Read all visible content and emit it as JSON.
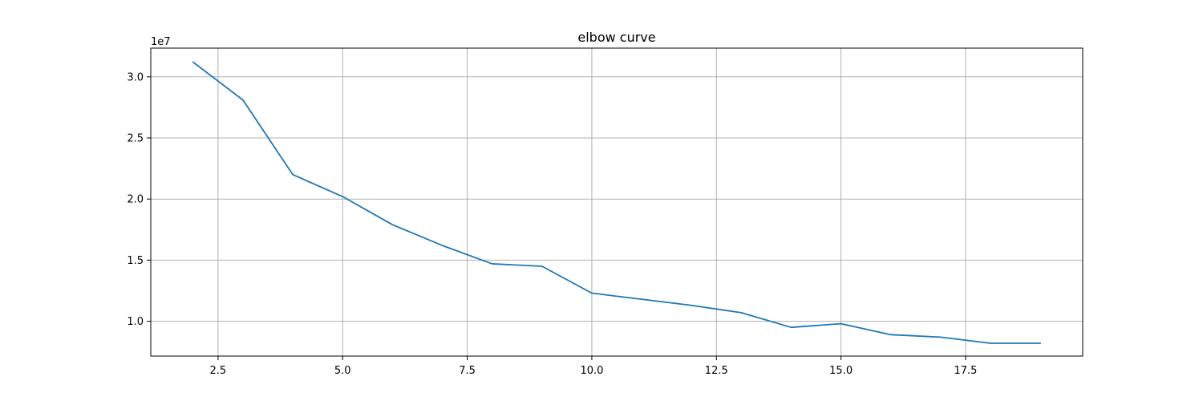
{
  "chart_data": {
    "type": "line",
    "title": "elbow curve",
    "xlabel": "",
    "ylabel": "",
    "y_offset_label": "1e7",
    "xlim": [
      1.15,
      19.85
    ],
    "ylim": [
      0.715,
      3.235
    ],
    "grid": true,
    "colors": {
      "line": "#1f77b4",
      "grid": "#b0b0b0",
      "axes": "#000000"
    },
    "x_ticks": [
      2.5,
      5.0,
      7.5,
      10.0,
      12.5,
      15.0,
      17.5
    ],
    "x_tick_labels": [
      "2.5",
      "5.0",
      "7.5",
      "10.0",
      "12.5",
      "15.0",
      "17.5"
    ],
    "y_ticks": [
      1.0,
      1.5,
      2.0,
      2.5,
      3.0
    ],
    "y_tick_labels": [
      "1.0",
      "1.5",
      "2.0",
      "2.5",
      "3.0"
    ],
    "series": [
      {
        "x": [
          2,
          3,
          4,
          5,
          6,
          7,
          8,
          9,
          10,
          11,
          12,
          13,
          14,
          15,
          16,
          17,
          18,
          19
        ],
        "values": [
          3.12,
          2.81,
          2.2,
          2.02,
          1.79,
          1.62,
          1.47,
          1.45,
          1.23,
          1.18,
          1.13,
          1.07,
          0.95,
          0.98,
          0.89,
          0.87,
          0.82,
          0.82
        ]
      }
    ]
  }
}
